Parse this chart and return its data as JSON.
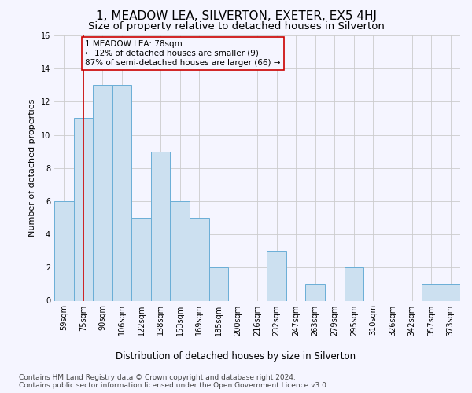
{
  "title": "1, MEADOW LEA, SILVERTON, EXETER, EX5 4HJ",
  "subtitle": "Size of property relative to detached houses in Silverton",
  "xlabel": "Distribution of detached houses by size in Silverton",
  "ylabel": "Number of detached properties",
  "categories": [
    "59sqm",
    "75sqm",
    "90sqm",
    "106sqm",
    "122sqm",
    "138sqm",
    "153sqm",
    "169sqm",
    "185sqm",
    "200sqm",
    "216sqm",
    "232sqm",
    "247sqm",
    "263sqm",
    "279sqm",
    "295sqm",
    "310sqm",
    "326sqm",
    "342sqm",
    "357sqm",
    "373sqm"
  ],
  "values": [
    6,
    11,
    13,
    13,
    5,
    9,
    6,
    5,
    2,
    0,
    0,
    3,
    0,
    1,
    0,
    2,
    0,
    0,
    0,
    1,
    1
  ],
  "bar_color": "#cce0f0",
  "bar_edgecolor": "#6aaed6",
  "property_line_x": 1.0,
  "property_line_color": "#cc0000",
  "annotation_text": "1 MEADOW LEA: 78sqm\n← 12% of detached houses are smaller (9)\n87% of semi-detached houses are larger (66) →",
  "annotation_box_color": "#cc0000",
  "ylim": [
    0,
    16
  ],
  "yticks": [
    0,
    2,
    4,
    6,
    8,
    10,
    12,
    14,
    16
  ],
  "footnote": "Contains HM Land Registry data © Crown copyright and database right 2024.\nContains public sector information licensed under the Open Government Licence v3.0.",
  "bg_color": "#f5f5ff",
  "grid_color": "#cccccc",
  "title_fontsize": 11,
  "subtitle_fontsize": 9.5,
  "xlabel_fontsize": 8.5,
  "ylabel_fontsize": 8,
  "tick_fontsize": 7,
  "annotation_fontsize": 7.5,
  "footnote_fontsize": 6.5
}
